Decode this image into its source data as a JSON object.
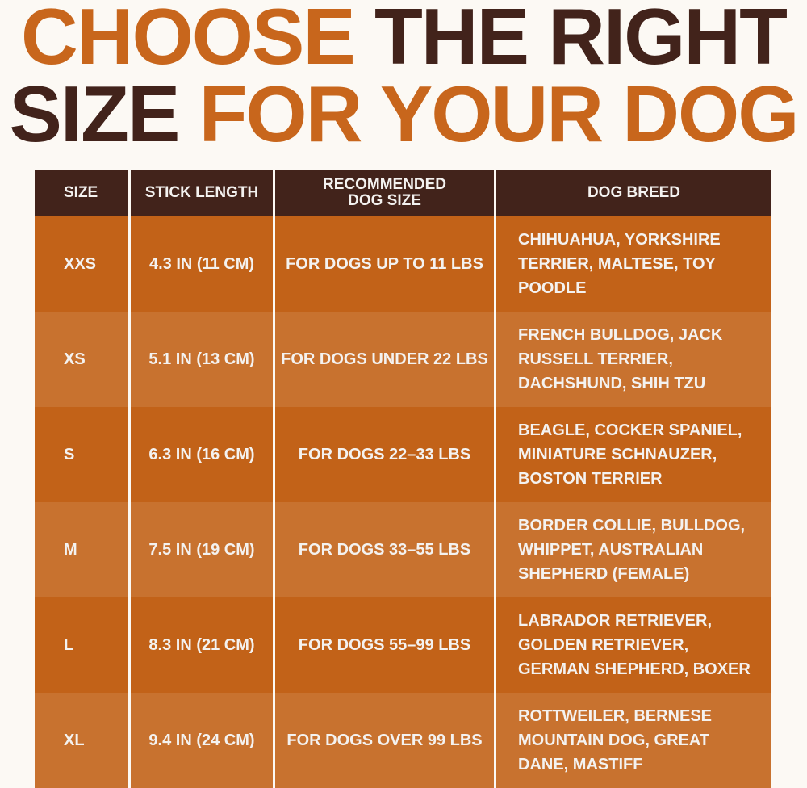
{
  "title": {
    "line1_accent": "CHOOSE",
    "line1_rest": "THE RIGHT",
    "line2_start": "SIZE",
    "line2_accent": "FOR YOUR DOG"
  },
  "colors": {
    "accent": "#c8661c",
    "dark": "#42231b",
    "row_a": "#c26218",
    "row_b": "#c8722f",
    "background": "#fcf9f4"
  },
  "table": {
    "headers": [
      "SIZE",
      "STICK LENGTH",
      "RECOMMENDED DOG SIZE",
      "DOG BREED"
    ],
    "rows": [
      {
        "size": "XXS",
        "length": "4.3 IN (11 CM)",
        "dog_size": "FOR DOGS UP TO 11 LBS",
        "breeds": "CHIHUAHUA, YORKSHIRE TERRIER, MALTESE, TOY POODLE"
      },
      {
        "size": "XS",
        "length": "5.1 IN (13 CM)",
        "dog_size": "FOR DOGS UNDER 22 LBS",
        "breeds": "FRENCH BULLDOG, JACK RUSSELL TERRIER, DACHSHUND, SHIH TZU"
      },
      {
        "size": "S",
        "length": "6.3 IN (16 CM)",
        "dog_size": "FOR DOGS 22–33 LBS",
        "breeds": "BEAGLE, COCKER SPANIEL, MINIATURE SCHNAUZER, BOSTON TERRIER"
      },
      {
        "size": "M",
        "length": "7.5 IN (19 CM)",
        "dog_size": "FOR DOGS 33–55 LBS",
        "breeds": "BORDER COLLIE, BULLDOG, WHIPPET, AUSTRALIAN SHEPHERD (FEMALE)"
      },
      {
        "size": "L",
        "length": "8.3 IN (21 CM)",
        "dog_size": "FOR DOGS 55–99 LBS",
        "breeds": "LABRADOR RETRIEVER, GOLDEN RETRIEVER, GERMAN SHEPHERD, BOXER"
      },
      {
        "size": "XL",
        "length": "9.4 IN (24 CM)",
        "dog_size": "FOR DOGS OVER 99 LBS",
        "breeds": "ROTTWEILER, BERNESE MOUNTAIN DOG, GREAT DANE, MASTIFF"
      }
    ]
  }
}
